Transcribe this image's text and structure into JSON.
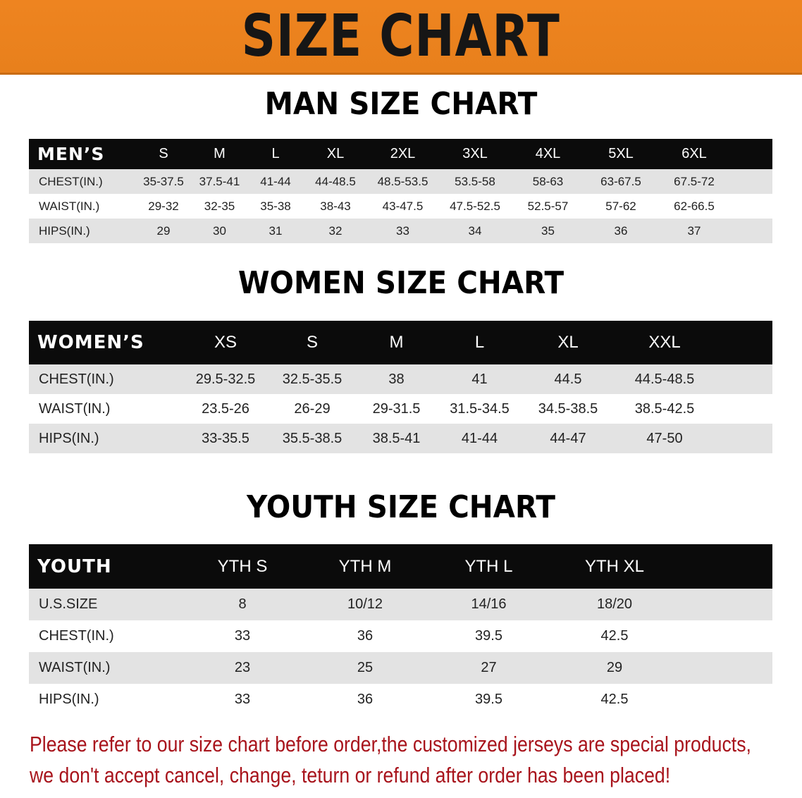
{
  "banner": {
    "title": "SIZE CHART",
    "color": "#ea821e"
  },
  "men": {
    "title": "MAN SIZE CHART",
    "header": [
      "MEN’S",
      "S",
      "M",
      "L",
      "XL",
      "2XL",
      "3XL",
      "4XL",
      "5XL",
      "6XL"
    ],
    "rows": [
      [
        "CHEST(IN.)",
        "35-37.5",
        "37.5-41",
        "41-44",
        "44-48.5",
        "48.5-53.5",
        "53.5-58",
        "58-63",
        "63-67.5",
        "67.5-72"
      ],
      [
        "WAIST(IN.)",
        "29-32",
        "32-35",
        "35-38",
        "38-43",
        "43-47.5",
        "47.5-52.5",
        "52.5-57",
        "57-62",
        "62-66.5"
      ],
      [
        "HIPS(IN.)",
        "29",
        "30",
        "31",
        "32",
        "33",
        "34",
        "35",
        "36",
        "37"
      ]
    ]
  },
  "women": {
    "title": "WOMEN SIZE CHART",
    "header": [
      "WOMEN’S",
      "XS",
      "S",
      "M",
      "L",
      "XL",
      "XXL"
    ],
    "rows": [
      [
        "CHEST(IN.)",
        "29.5-32.5",
        "32.5-35.5",
        "38",
        "41",
        "44.5",
        "44.5-48.5"
      ],
      [
        "WAIST(IN.)",
        "23.5-26",
        "26-29",
        "29-31.5",
        "31.5-34.5",
        "34.5-38.5",
        "38.5-42.5"
      ],
      [
        "HIPS(IN.)",
        "33-35.5",
        "35.5-38.5",
        "38.5-41",
        "41-44",
        "44-47",
        "47-50"
      ]
    ]
  },
  "youth": {
    "title": "YOUTH SIZE CHART",
    "header": [
      "YOUTH",
      "YTH S",
      "YTH M",
      "YTH L",
      "YTH XL"
    ],
    "rows": [
      [
        "U.S.SIZE",
        "8",
        "10/12",
        "14/16",
        "18/20"
      ],
      [
        "CHEST(IN.)",
        "33",
        "36",
        "39.5",
        "42.5"
      ],
      [
        "WAIST(IN.)",
        "23",
        "25",
        "27",
        "29"
      ],
      [
        "HIPS(IN.)",
        "33",
        "36",
        "39.5",
        "42.5"
      ]
    ]
  },
  "notice": {
    "line1": "Please refer to our size chart before order,the customized jerseys are special products,",
    "line2": "we don't accept cancel, change, teturn or refund after order has been placed!",
    "color": "#a8141c"
  }
}
